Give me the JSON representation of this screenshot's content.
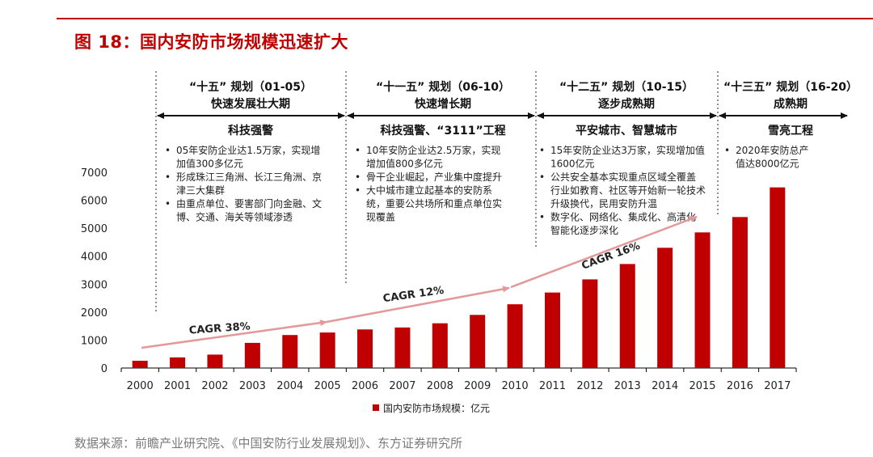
{
  "figure": {
    "title": "图 18：国内安防市场规模迅速扩大",
    "source": "数据来源：前瞻产业研究院、《中国安防行业发展规划》、东方证券研究所"
  },
  "colors": {
    "brand": "#c00000",
    "arrow": "#e39999",
    "axis": "#000000",
    "text": "#222222"
  },
  "periods": [
    {
      "plan": "“十五” 规划（01-05）",
      "phase": "快速发展壮大期",
      "theme": "科技强警",
      "bullets": [
        "05年安防企业达1.5万家，实现增加值300多亿元",
        "形成珠江三角洲、长江三角洲、京津三大集群",
        "由重点单位、要害部门向金融、文博、交通、海关等领域渗透"
      ],
      "lines": [
        [
          "05年安防企业达1.5万家，实现增",
          "加值300多亿元"
        ],
        [
          "形成珠江三角洲、长江三角洲、京",
          "津三大集群"
        ],
        [
          "由重点单位、要害部门向金融、文",
          "博、交通、海关等领域渗透"
        ]
      ]
    },
    {
      "plan": "“十一五” 规划（06-10）",
      "phase": "快速增长期",
      "theme": "科技强警、“3111”工程",
      "bullets": [
        "10年安防企业达2.5万家，实现增加值800多亿元",
        "骨干企业崛起，产业集中度提升",
        "大中城市建立起基本的安防系统，重要公共场所和重点单位实现覆盖"
      ],
      "lines": [
        [
          "10年安防企业达2.5万家，实现",
          "增加值800多亿元"
        ],
        [
          "骨干企业崛起，产业集中度提升"
        ],
        [
          "大中城市建立起基本的安防系",
          "统，重要公共场所和重点单位实",
          "现覆盖"
        ]
      ]
    },
    {
      "plan": "“十二五” 规划（10-15）",
      "phase": "逐步成熟期",
      "theme": "平安城市、智慧城市",
      "bullets": [
        "15年安防企业达3万家，实现增加值1600亿元",
        "公共安全基本实现重点区域全覆盖行业如教育、社区等开始新一轮技术升级换代，民用安防升温",
        "数字化、网络化、集成化、高清化智能化逐步深化"
      ],
      "lines": [
        [
          "15年安防企业达3万家，实现增加值",
          "1600亿元"
        ],
        [
          "公共安全基本实现重点区域全覆盖",
          "行业如教育、社区等开始新一轮技术",
          "升级换代，民用安防升温"
        ],
        [
          "数字化、网络化、集成化、高清化",
          "智能化逐步深化"
        ]
      ]
    },
    {
      "plan": "“十三五” 规划（16-20）",
      "phase": "成熟期",
      "theme": "雪亮工程",
      "bullets": [
        "2020年安防总产值达8000亿元"
      ],
      "lines": [
        [
          "2020年安防总产",
          "值达8000亿元"
        ]
      ]
    }
  ],
  "cagr": [
    {
      "label": "CAGR 38%",
      "from": "2000",
      "to": "2005"
    },
    {
      "label": "CAGR 12%",
      "from": "2005",
      "to": "2010"
    },
    {
      "label": "CAGR 16%",
      "from": "2010",
      "to": "2015"
    }
  ],
  "chart_data": {
    "type": "bar",
    "title": "国内安防市场规模迅速扩大",
    "categories": [
      "2000",
      "2001",
      "2002",
      "2003",
      "2004",
      "2005",
      "2006",
      "2007",
      "2008",
      "2009",
      "2010",
      "2011",
      "2012",
      "2013",
      "2014",
      "2015",
      "2016",
      "2017"
    ],
    "series": [
      {
        "name": "国内安防市场规模：亿元",
        "values": [
          260,
          380,
          480,
          900,
          1180,
          1270,
          1380,
          1450,
          1600,
          1900,
          2280,
          2700,
          3170,
          3720,
          4300,
          4850,
          5400,
          6460
        ]
      }
    ],
    "yticks": [
      0,
      1000,
      2000,
      3000,
      4000,
      5000,
      6000,
      7000
    ],
    "ylim": [
      0,
      7000
    ],
    "legend": "国内安防市场规模：亿元",
    "legend_position": "bottom-center",
    "grid": false
  }
}
